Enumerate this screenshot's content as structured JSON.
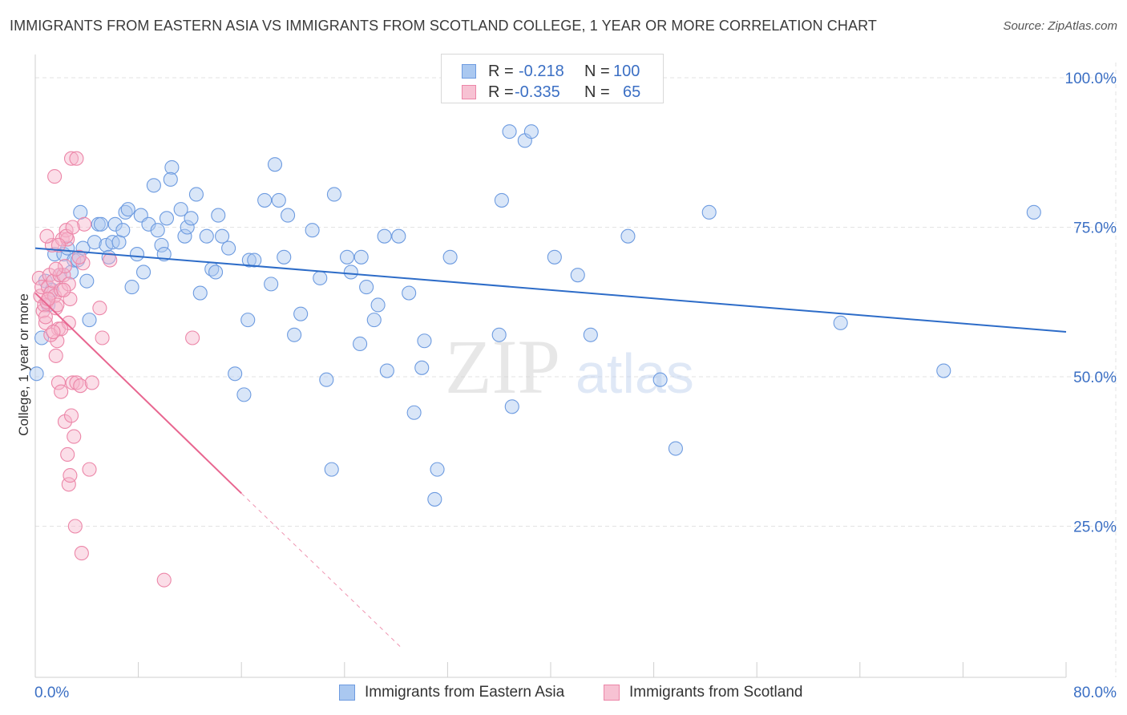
{
  "title": "IMMIGRANTS FROM EASTERN ASIA VS IMMIGRANTS FROM SCOTLAND COLLEGE, 1 YEAR OR MORE CORRELATION CHART",
  "source": "Source: ZipAtlas.com",
  "watermark": "ZIPatlas",
  "legend_top": {
    "rows": [
      {
        "r_label": "R =",
        "r_value": "-0.218",
        "n_label": "N =",
        "n_value": "100"
      },
      {
        "r_label": "R =",
        "r_value": "-0.335",
        "n_label": "N =",
        "n_value": "65"
      }
    ]
  },
  "legend_bottom": {
    "items": [
      "Immigrants from Eastern Asia",
      "Immigrants from Scotland"
    ]
  },
  "colors": {
    "blue_fill": "#aac8f0",
    "blue_stroke": "#6d9be0",
    "blue_line": "#2d6cc8",
    "pink_fill": "#f7b6cb",
    "pink_stroke": "#ec86a8",
    "pink_line": "#e86690",
    "tick_label": "#3b6fc4",
    "grid": "#e3e3e3"
  },
  "chart_data": {
    "type": "scatter",
    "title": "IMMIGRANTS FROM EASTERN ASIA VS IMMIGRANTS FROM SCOTLAND COLLEGE, 1 YEAR OR MORE CORRELATION CHART",
    "xlabel": "",
    "ylabel": "College, 1 year or more",
    "xlim": [
      0,
      80
    ],
    "ylim": [
      0,
      100
    ],
    "x_tick_labels": [
      "0.0%",
      "80.0%"
    ],
    "y_tick_labels": [
      "100.0%",
      "75.0%",
      "50.0%",
      "25.0%"
    ],
    "y_ticks": [
      100,
      75,
      50,
      25
    ],
    "grid": true,
    "legend_position": "bottom",
    "series": [
      {
        "name": "Immigrants from Eastern Asia",
        "points": [
          [
            0.1,
            50.5
          ],
          [
            0.5,
            56.5
          ],
          [
            0.8,
            66
          ],
          [
            1.0,
            62
          ],
          [
            1.3,
            64.5
          ],
          [
            1.5,
            70.5
          ],
          [
            1.9,
            67
          ],
          [
            2.2,
            70.5
          ],
          [
            2.5,
            71.5
          ],
          [
            2.8,
            67.5
          ],
          [
            3.0,
            69.5
          ],
          [
            3.3,
            69.5
          ],
          [
            3.5,
            77.5
          ],
          [
            3.7,
            71.5
          ],
          [
            4.0,
            66
          ],
          [
            4.2,
            59.5
          ],
          [
            4.6,
            72.5
          ],
          [
            4.9,
            75.5
          ],
          [
            5.1,
            75.5
          ],
          [
            5.5,
            72
          ],
          [
            5.7,
            70
          ],
          [
            6.0,
            72.5
          ],
          [
            6.2,
            75.5
          ],
          [
            6.5,
            72.5
          ],
          [
            6.8,
            74.5
          ],
          [
            7.0,
            77.5
          ],
          [
            7.2,
            78
          ],
          [
            7.5,
            65
          ],
          [
            7.9,
            70.5
          ],
          [
            8.2,
            77
          ],
          [
            8.4,
            67.5
          ],
          [
            8.8,
            75.5
          ],
          [
            9.2,
            82
          ],
          [
            9.5,
            74.5
          ],
          [
            9.8,
            72
          ],
          [
            10.0,
            70.5
          ],
          [
            10.2,
            76.5
          ],
          [
            10.6,
            85
          ],
          [
            10.5,
            83
          ],
          [
            11.3,
            78
          ],
          [
            11.6,
            73.5
          ],
          [
            11.8,
            75
          ],
          [
            12.1,
            76.5
          ],
          [
            12.5,
            80.5
          ],
          [
            12.8,
            64
          ],
          [
            13.3,
            73.5
          ],
          [
            13.7,
            68
          ],
          [
            14.0,
            67.5
          ],
          [
            14.2,
            77
          ],
          [
            14.5,
            73.5
          ],
          [
            15.0,
            71.5
          ],
          [
            15.5,
            50.5
          ],
          [
            16.2,
            47
          ],
          [
            16.5,
            59.5
          ],
          [
            16.6,
            69.5
          ],
          [
            17.0,
            69.5
          ],
          [
            17.8,
            79.5
          ],
          [
            18.3,
            65.5
          ],
          [
            18.6,
            85.5
          ],
          [
            18.9,
            79.5
          ],
          [
            19.3,
            70
          ],
          [
            19.6,
            77
          ],
          [
            20.1,
            57
          ],
          [
            20.6,
            60.5
          ],
          [
            21.5,
            74.5
          ],
          [
            22.1,
            66.5
          ],
          [
            22.6,
            49.5
          ],
          [
            23.0,
            34.5
          ],
          [
            23.2,
            80.5
          ],
          [
            24.2,
            70
          ],
          [
            24.5,
            67.5
          ],
          [
            25.3,
            70
          ],
          [
            25.2,
            55.5
          ],
          [
            25.7,
            65
          ],
          [
            26.3,
            59.5
          ],
          [
            26.6,
            62
          ],
          [
            27.1,
            73.5
          ],
          [
            27.3,
            51
          ],
          [
            28.2,
            73.5
          ],
          [
            29.0,
            64
          ],
          [
            29.4,
            44
          ],
          [
            30.0,
            51.5
          ],
          [
            30.2,
            56
          ],
          [
            31.0,
            29.5
          ],
          [
            31.2,
            34.5
          ],
          [
            32.2,
            70
          ],
          [
            36.0,
            57
          ],
          [
            36.2,
            79.5
          ],
          [
            37.0,
            45
          ],
          [
            36.8,
            91
          ],
          [
            38.0,
            89.5
          ],
          [
            38.5,
            91
          ],
          [
            40.3,
            70
          ],
          [
            42.1,
            67
          ],
          [
            43.1,
            57
          ],
          [
            46.0,
            73.5
          ],
          [
            48.5,
            49.5
          ],
          [
            49.7,
            38
          ],
          [
            52.3,
            77.5
          ],
          [
            62.5,
            59
          ],
          [
            70.5,
            51
          ],
          [
            77.5,
            77.5
          ]
        ]
      },
      {
        "name": "Immigrants from Scotland",
        "points": [
          [
            0.3,
            66.5
          ],
          [
            0.4,
            63.5
          ],
          [
            0.5,
            65
          ],
          [
            0.6,
            61
          ],
          [
            0.7,
            62
          ],
          [
            0.8,
            59
          ],
          [
            0.9,
            62.5
          ],
          [
            1.0,
            65
          ],
          [
            1.1,
            67
          ],
          [
            1.2,
            64
          ],
          [
            1.3,
            72
          ],
          [
            1.4,
            66
          ],
          [
            1.5,
            63.5
          ],
          [
            1.6,
            61.5
          ],
          [
            1.7,
            62
          ],
          [
            1.8,
            58
          ],
          [
            1.9,
            67
          ],
          [
            2.0,
            64.5
          ],
          [
            2.1,
            73
          ],
          [
            2.2,
            67
          ],
          [
            2.3,
            68.5
          ],
          [
            2.4,
            74.5
          ],
          [
            2.5,
            73
          ],
          [
            2.6,
            65.5
          ],
          [
            2.7,
            63
          ],
          [
            0.9,
            73.5
          ],
          [
            1.5,
            83.5
          ],
          [
            2.8,
            86.5
          ],
          [
            3.2,
            86.5
          ],
          [
            1.6,
            53.5
          ],
          [
            1.8,
            49
          ],
          [
            1.7,
            56
          ],
          [
            2.0,
            47.5
          ],
          [
            2.3,
            42.5
          ],
          [
            2.6,
            59
          ],
          [
            2.8,
            43.5
          ],
          [
            2.9,
            49
          ],
          [
            3.0,
            40
          ],
          [
            3.2,
            49
          ],
          [
            3.5,
            48.5
          ],
          [
            3.7,
            69
          ],
          [
            3.8,
            75.5
          ],
          [
            4.2,
            34.5
          ],
          [
            4.4,
            49
          ],
          [
            5.0,
            61.5
          ],
          [
            5.2,
            56.5
          ],
          [
            5.8,
            69.5
          ],
          [
            2.5,
            37
          ],
          [
            2.6,
            32
          ],
          [
            2.7,
            33.5
          ],
          [
            3.1,
            25
          ],
          [
            3.6,
            20.5
          ],
          [
            10.0,
            16
          ],
          [
            12.2,
            56.5
          ],
          [
            1.2,
            57
          ],
          [
            0.8,
            60
          ],
          [
            1.6,
            68
          ],
          [
            2.2,
            64.5
          ],
          [
            1.0,
            63
          ],
          [
            2.4,
            73.5
          ],
          [
            1.8,
            72
          ],
          [
            2.9,
            75
          ],
          [
            3.4,
            70
          ],
          [
            2.0,
            58
          ],
          [
            1.4,
            57.5
          ]
        ]
      }
    ],
    "trend_lines": [
      {
        "series": "Immigrants from Eastern Asia",
        "x": [
          0,
          80
        ],
        "y": [
          71.5,
          57.5
        ],
        "style": "solid"
      },
      {
        "series": "Immigrants from Scotland",
        "x": [
          0,
          16
        ],
        "y": [
          64,
          30.5
        ],
        "style": "solid"
      },
      {
        "series": "Immigrants from Scotland",
        "x": [
          16,
          28.5
        ],
        "y": [
          30.5,
          4.5
        ],
        "style": "dashed"
      }
    ]
  }
}
